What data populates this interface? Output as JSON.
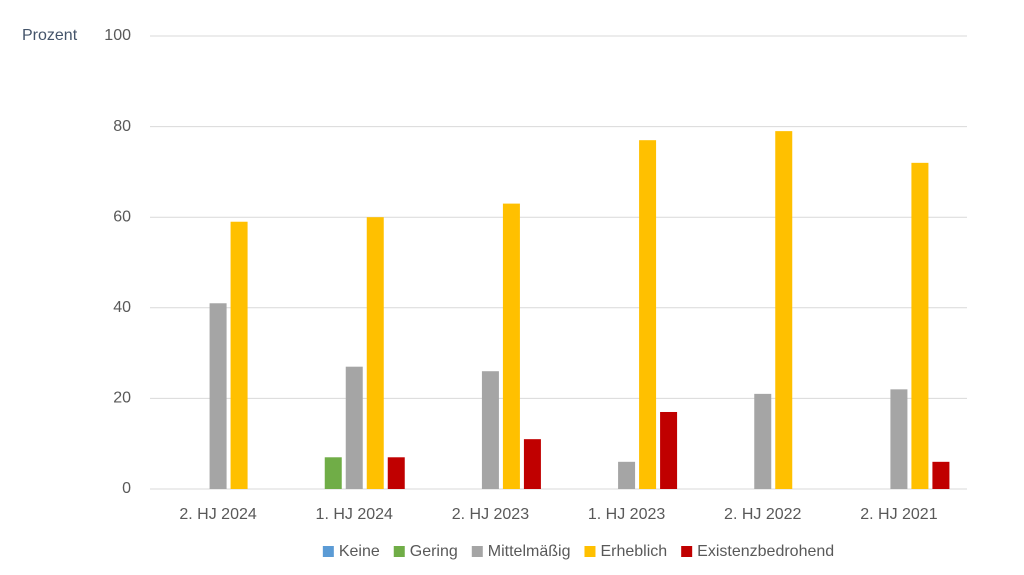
{
  "chart_data": {
    "type": "bar",
    "y_label": "Prozent",
    "categories": [
      "2. HJ 2024",
      "1. HJ 2024",
      "2. HJ 2023",
      "1. HJ 2023",
      "2. HJ 2022",
      "2. HJ 2021"
    ],
    "series": [
      {
        "name": "Keine",
        "color": "#5b9bd5",
        "values": [
          0,
          0,
          0,
          0,
          0,
          0
        ]
      },
      {
        "name": "Gering",
        "color": "#70ad47",
        "values": [
          0,
          7,
          0,
          0,
          0,
          0
        ]
      },
      {
        "name": "Mittelmäßig",
        "color": "#a5a5a5",
        "values": [
          41,
          27,
          26,
          6,
          21,
          22
        ]
      },
      {
        "name": "Erheblich",
        "color": "#ffc000",
        "values": [
          59,
          60,
          63,
          77,
          79,
          72
        ]
      },
      {
        "name": "Existenzbedrohend",
        "color": "#c00000",
        "values": [
          0,
          7,
          11,
          17,
          0,
          6
        ]
      }
    ],
    "ylim": [
      0,
      100
    ],
    "yticks": [
      0,
      20,
      40,
      60,
      80,
      100
    ],
    "grid": true,
    "legend": "bottom"
  }
}
